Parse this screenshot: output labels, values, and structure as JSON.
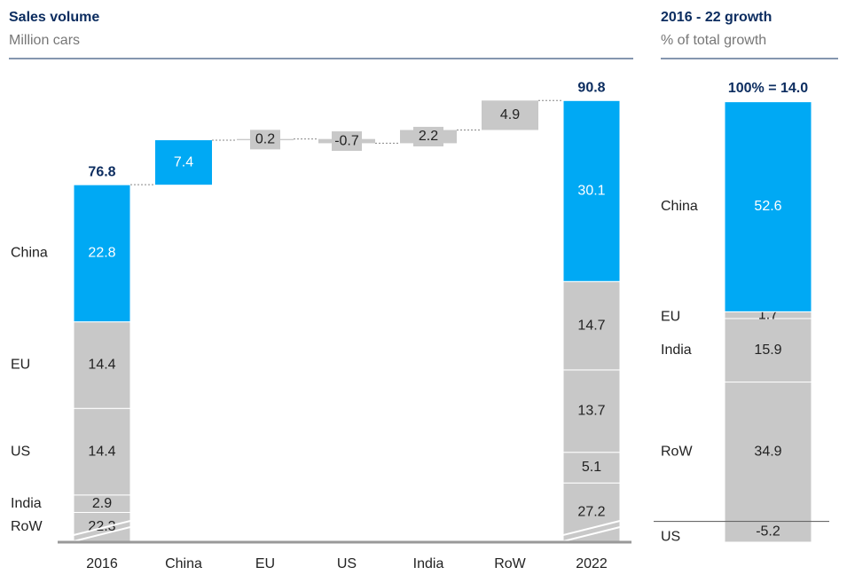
{
  "chart_data": [
    {
      "type": "waterfall",
      "title": "Sales volume",
      "subtitle": "Million cars",
      "categories": [
        "2016",
        "China",
        "EU",
        "US",
        "India",
        "RoW",
        "2022"
      ],
      "series": [
        {
          "name": "China",
          "color": "#00a9f4",
          "values": [
            22.8,
            null,
            null,
            null,
            null,
            null,
            30.1
          ]
        },
        {
          "name": "EU",
          "color": "#c8c8c8",
          "values": [
            14.4,
            null,
            null,
            null,
            null,
            null,
            14.7
          ]
        },
        {
          "name": "US",
          "color": "#c8c8c8",
          "values": [
            14.4,
            null,
            null,
            null,
            null,
            null,
            13.7
          ]
        },
        {
          "name": "India",
          "color": "#c8c8c8",
          "values": [
            2.9,
            null,
            null,
            null,
            null,
            null,
            5.1
          ]
        },
        {
          "name": "RoW",
          "color": "#c8c8c8",
          "values": [
            22.3,
            null,
            null,
            null,
            null,
            null,
            27.2
          ]
        }
      ],
      "steps": [
        null,
        7.4,
        0.2,
        -0.7,
        2.2,
        4.9,
        null
      ],
      "totals": [
        76.8,
        null,
        null,
        null,
        null,
        null,
        90.8
      ],
      "ylim": [
        17.5,
        93.5
      ],
      "axis_break": true
    },
    {
      "type": "stacked_bar",
      "title": "2016 - 22 growth",
      "subtitle": "% of total growth",
      "total_label": "100% = 14.0",
      "series": [
        {
          "name": "China",
          "color": "#00a9f4",
          "values": [
            52.6
          ]
        },
        {
          "name": "EU",
          "color": "#c8c8c8",
          "values": [
            1.7
          ]
        },
        {
          "name": "India",
          "color": "#c8c8c8",
          "values": [
            15.9
          ]
        },
        {
          "name": "RoW",
          "color": "#c8c8c8",
          "values": [
            34.9
          ]
        },
        {
          "name": "US",
          "color": "#c8c8c8",
          "values": [
            -5.2
          ]
        }
      ],
      "ylim": [
        -6,
        106
      ]
    }
  ]
}
